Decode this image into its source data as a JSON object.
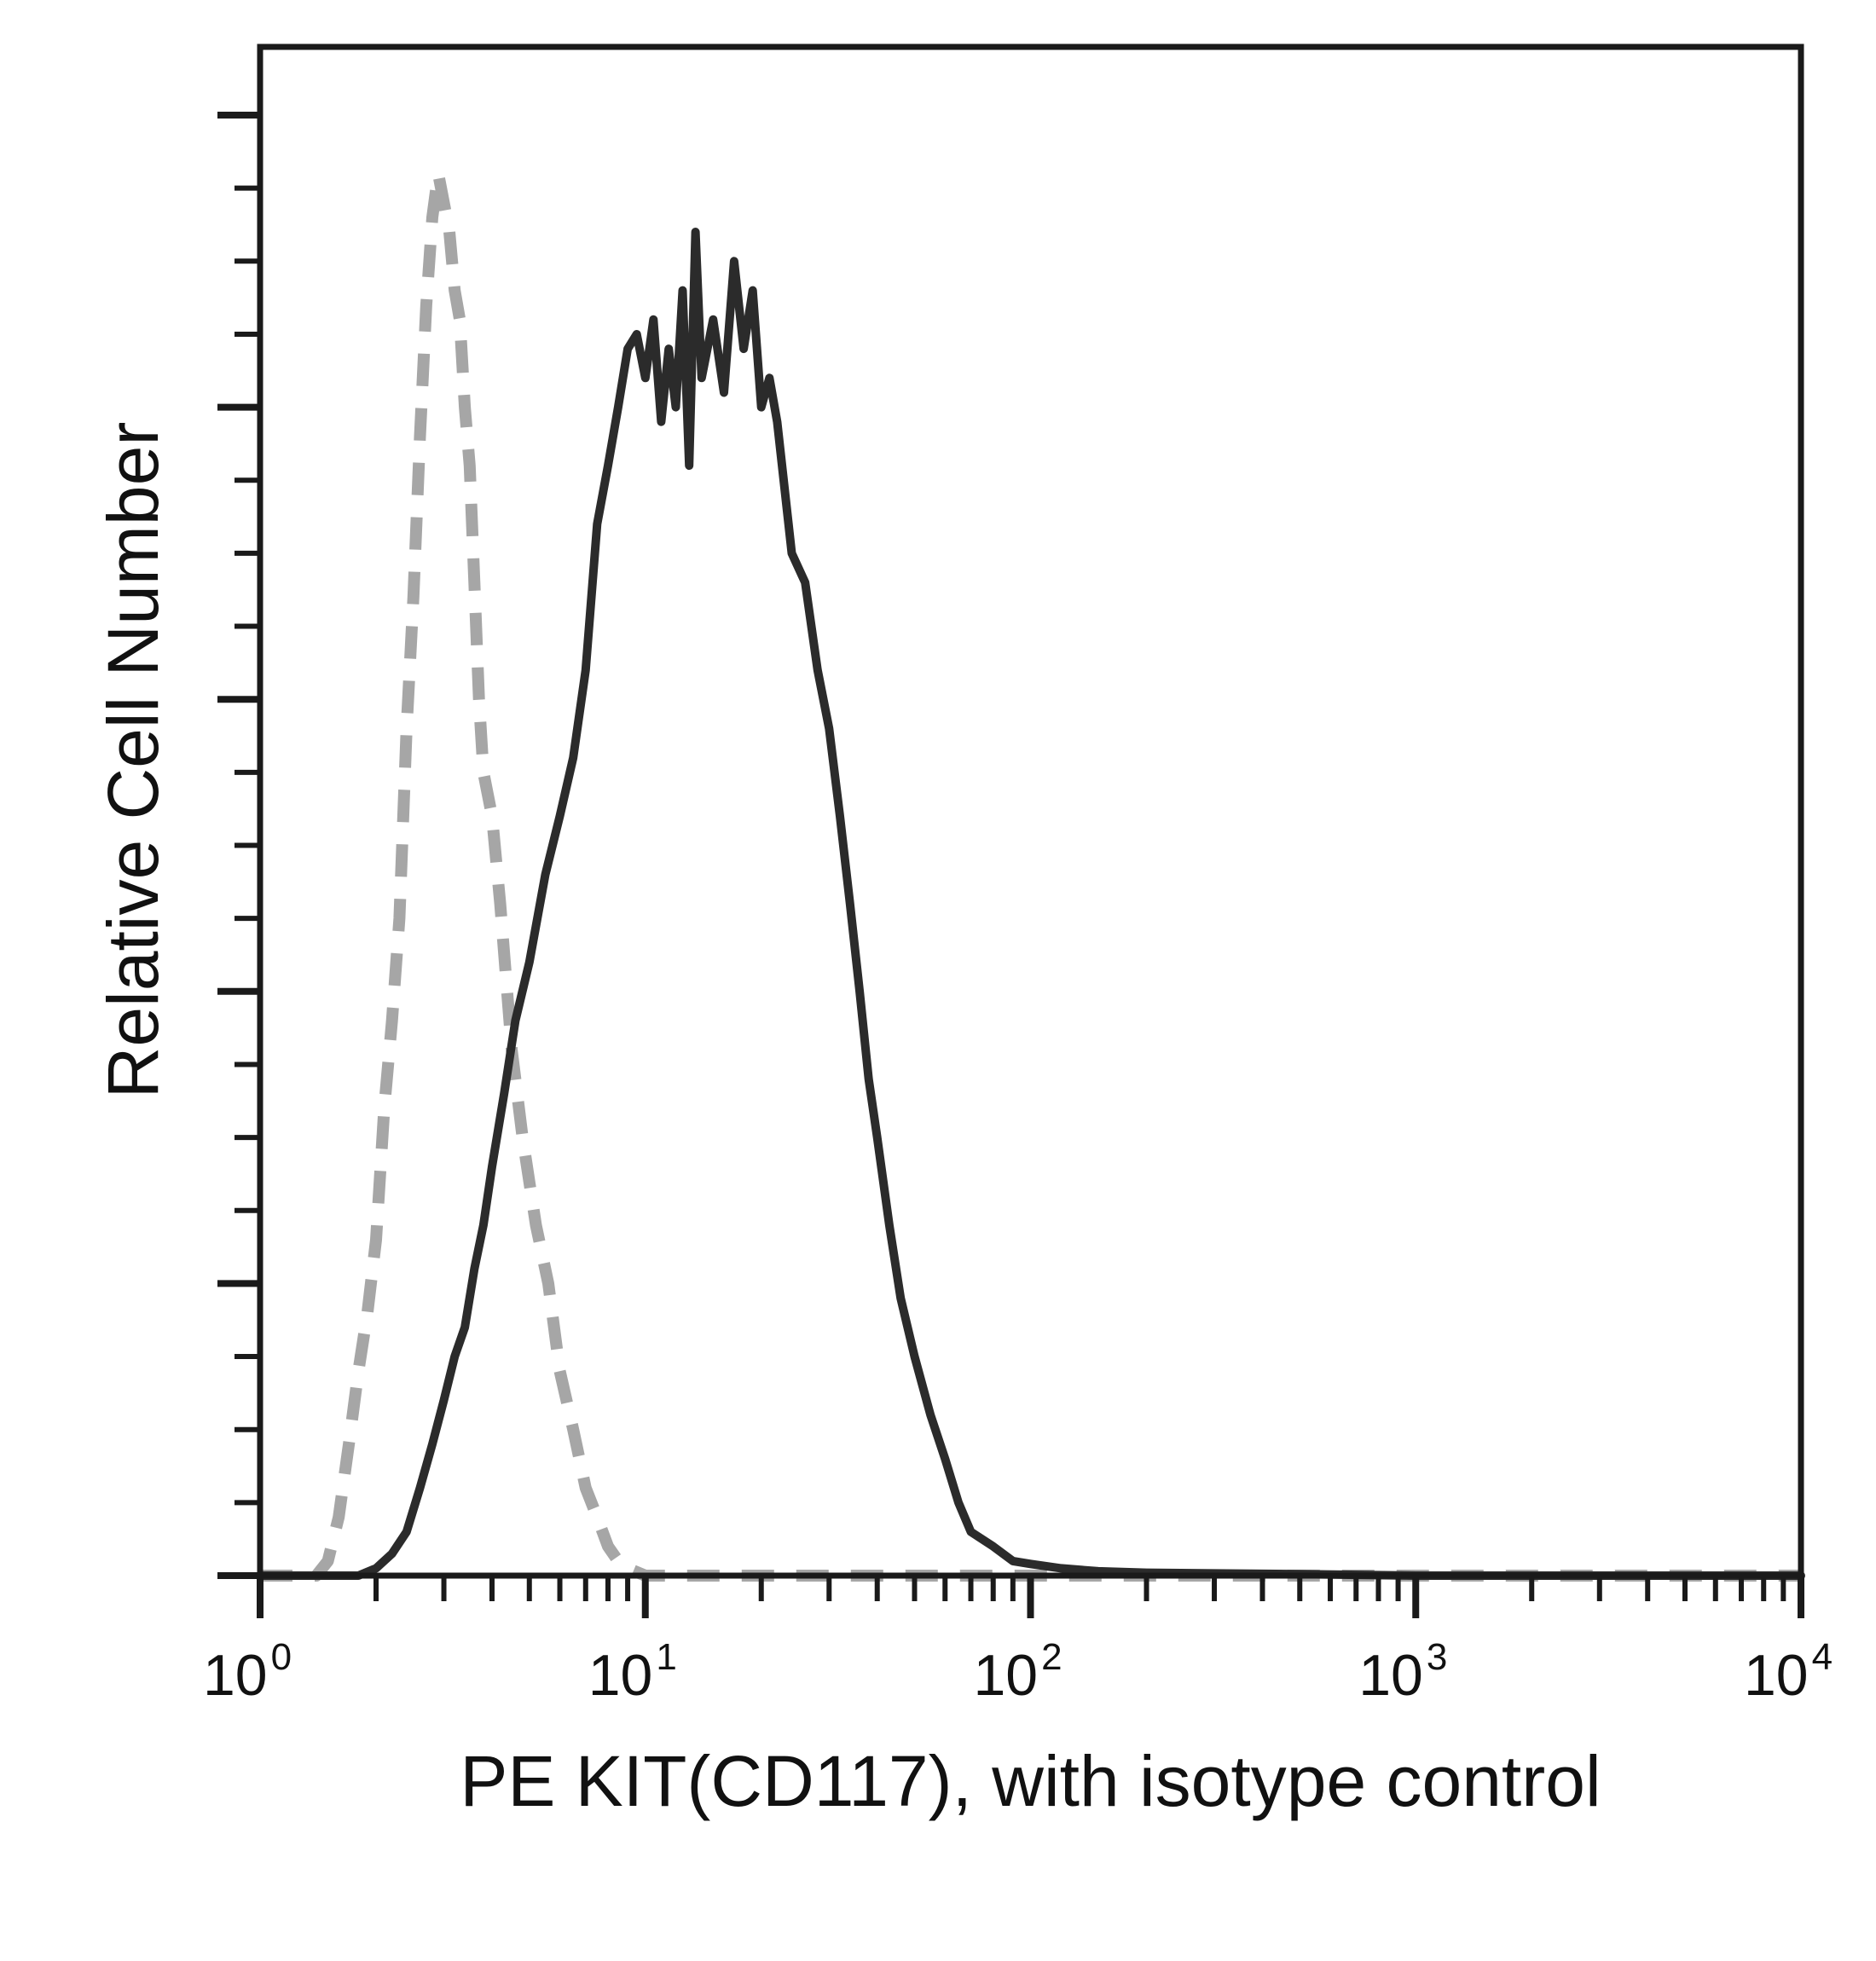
{
  "chart_data": {
    "type": "line",
    "title": "",
    "xlabel": "PE KIT(CD117), with isotype control",
    "ylabel": "Relative Cell Number",
    "xscale": "log",
    "xlim": [
      1,
      10000
    ],
    "ylim": [
      0,
      100
    ],
    "x_ticks": [
      {
        "base": "10",
        "exp": "0"
      },
      {
        "base": "10",
        "exp": "1"
      },
      {
        "base": "10",
        "exp": "2"
      },
      {
        "base": "10",
        "exp": "3"
      },
      {
        "base": "10",
        "exp": "4"
      }
    ],
    "y_tick_labels": "none",
    "grid": false,
    "legend": "none",
    "series": [
      {
        "style": "dashed",
        "color": "#a6a6a6",
        "x": [
          1.0,
          1.4,
          1.5,
          1.6,
          1.7,
          1.8,
          1.9,
          2.0,
          2.1,
          2.2,
          2.3,
          2.4,
          2.5,
          2.6,
          2.7,
          2.8,
          2.9,
          3.0,
          3.1,
          3.2,
          3.3,
          3.4,
          3.5,
          3.6,
          3.7,
          3.8,
          4.0,
          4.2,
          4.5,
          4.8,
          5.2,
          5.6,
          6.0,
          6.5,
          7.0,
          7.5,
          8.0,
          8.5,
          9.0,
          10.0,
          15.0,
          30.0,
          100.0,
          1000.0,
          10000.0
        ],
        "y": [
          0,
          0,
          1,
          4,
          9,
          14,
          18,
          23,
          32,
          38,
          45,
          58,
          67,
          78,
          87,
          93,
          96,
          94,
          92,
          88,
          86,
          80,
          76,
          68,
          60,
          55,
          52,
          46,
          36,
          30,
          24,
          20,
          14,
          10,
          6,
          4,
          2,
          1,
          0.5,
          0,
          0,
          0,
          0,
          0,
          0
        ]
      },
      {
        "style": "solid",
        "color": "#2b2b2b",
        "x": [
          1.0,
          1.8,
          2.0,
          2.2,
          2.4,
          2.6,
          2.8,
          3.0,
          3.2,
          3.4,
          3.6,
          3.8,
          4.0,
          4.3,
          4.6,
          5.0,
          5.5,
          6.0,
          6.5,
          7.0,
          7.5,
          8.0,
          8.5,
          9.0,
          9.5,
          10.0,
          10.5,
          11.0,
          11.5,
          12.0,
          12.5,
          13.0,
          13.5,
          14.0,
          15.0,
          16.0,
          17.0,
          18.0,
          19.0,
          20.0,
          21.0,
          22.0,
          24.0,
          26.0,
          28.0,
          30.0,
          32.0,
          34.0,
          36.0,
          38.0,
          40.0,
          43.0,
          46.0,
          50.0,
          55.0,
          60.0,
          65.0,
          70.0,
          80.0,
          90.0,
          100.0,
          120.0,
          150.0,
          200.0,
          500.0,
          1000.0,
          10000.0
        ],
        "y": [
          0,
          0,
          0.5,
          1.5,
          3,
          6,
          9,
          12,
          15,
          17,
          21,
          24,
          28,
          33,
          38,
          42,
          48,
          52,
          56,
          62,
          72,
          76,
          80,
          84,
          85,
          82,
          86,
          79,
          84,
          80,
          88,
          76,
          92,
          82,
          86,
          81,
          90,
          84,
          88,
          80,
          82,
          79,
          70,
          68,
          62,
          58,
          52,
          46,
          40,
          34,
          30,
          24,
          19,
          15,
          11,
          8,
          5,
          3,
          2,
          1,
          0.8,
          0.5,
          0.3,
          0.2,
          0.1,
          0,
          0
        ]
      }
    ]
  }
}
